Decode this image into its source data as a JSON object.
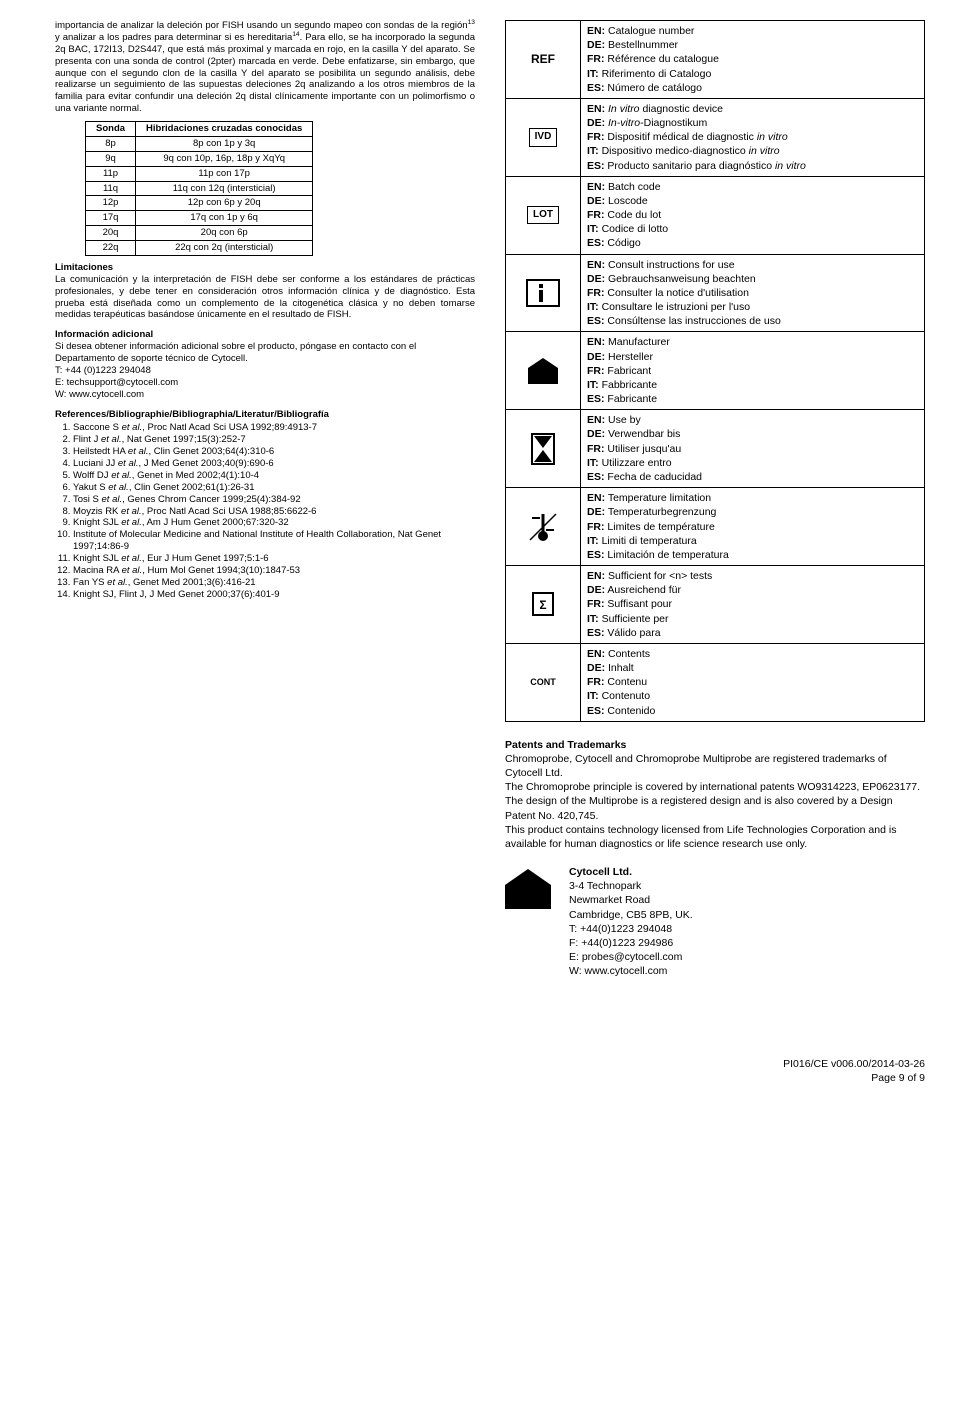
{
  "intro_paragraph_html": "importancia de analizar la deleción por FISH usando un segundo mapeo con sondas de la región<sup>13</sup> y analizar a los padres para determinar si es hereditaria<sup>14</sup>. Para ello, se ha incorporado la segunda 2q BAC, 172I13, D2S447, que está más proximal y marcada en rojo, en la casilla Y del aparato. Se presenta con una sonda de control (2pter) marcada en verde. Debe enfatizarse, sin embargo, que aunque con el segundo clon de la casilla Y del aparato se posibilita un segundo análisis, debe realizarse un seguimiento de las supuestas deleciones 2q analizando a los otros miembros de la familia para evitar confundir una deleción 2q distal clínicamente importante con un polimorfismo o una variante normal.",
  "sonda_table": {
    "headers": [
      "Sonda",
      "Hibridaciones cruzadas conocidas"
    ],
    "rows": [
      [
        "8p",
        "8p con 1p y 3q"
      ],
      [
        "9q",
        "9q con 10p, 16p, 18p y XqYq"
      ],
      [
        "11p",
        "11p con 17p"
      ],
      [
        "11q",
        "11q con 12q (intersticial)"
      ],
      [
        "12p",
        "12p con 6p y 20q"
      ],
      [
        "17q",
        "17q con 1p y 6q"
      ],
      [
        "20q",
        "20q con 6p"
      ],
      [
        "22q",
        "22q con 2q (intersticial)"
      ]
    ]
  },
  "limitaciones_title": "Limitaciones",
  "limitaciones_body": "La comunicación y la interpretación de FISH debe ser conforme a los estándares de prácticas profesionales, y debe tener en consideración otros información clínica y de diagnóstico. Esta prueba está diseñada como un complemento de la citogenética clásica y no deben tomarse medidas terapéuticas basándose únicamente en el resultado de FISH.",
  "info_title": "Información adicional",
  "info_body": "Si desea obtener información adicional sobre el producto, póngase en contacto con el Departamento de soporte técnico de Cytocell.",
  "info_tel": "T: +44 (0)1223 294048",
  "info_email": "E: techsupport@cytocell.com",
  "info_web": "W: www.cytocell.com",
  "refs_title": "References/Bibliographie/Bibliographia/Literatur/Bibliografía",
  "refs": [
    "Saccone S <i>et al.</i>, Proc Natl Acad Sci USA 1992;89:4913-7",
    "Flint J <i>et al.</i>, Nat Genet 1997;15(3):252-7",
    "Heilstedt HA <i>et al.</i>, Clin Genet 2003;64(4):310-6",
    "Luciani JJ <i>et al.</i>, J Med Genet 2003;40(9):690-6",
    "Wolff DJ <i>et al.</i>, Genet in Med 2002;4(1):10-4",
    "Yakut S <i>et al.</i>, Clin Genet 2002;61(1):26-31",
    "Tosi S <i>et al.</i>, Genes Chrom Cancer 1999;25(4):384-92",
    "Moyzis RK <i>et al.</i>, Proc Natl Acad Sci USA 1988;85:6622-6",
    "Knight SJL <i>et al.</i>, Am J Hum Genet 2000;67:320-32",
    "Institute of Molecular Medicine and National Institute of Health Collaboration, Nat Genet 1997;14:86-9",
    "Knight SJL <i>et al.</i>, Eur J Hum Genet 1997;5:1-6",
    "Macina RA <i>et al.</i>, Hum Mol Genet 1994;3(10):1847-53",
    "Fan YS <i>et al.</i>, Genet Med 2001;3(6):416-21",
    "Knight SJ, Flint J, J Med Genet 2000;37(6):401-9"
  ],
  "symbols": [
    {
      "code": "REF",
      "svg": "ref",
      "lines": {
        "EN": "Catalogue number",
        "DE": "Bestellnummer",
        "FR": "Référence du catalogue",
        "IT": "Riferimento di Catalogo",
        "ES": "Número de catálogo"
      }
    },
    {
      "code": "IVD",
      "svg": "ivd",
      "lines": {
        "EN": "<i>In vitro</i> diagnostic device",
        "DE": "<i>In-vitro</i>-Diagnostikum",
        "FR": "Dispositif médical de diagnostic <i>in vitro</i>",
        "IT": "Dispositivo medico-diagnostico <i>in vitro</i>",
        "ES": "Producto sanitario para diagnóstico <i>in vitro</i>"
      }
    },
    {
      "code": "LOT",
      "svg": "lot",
      "lines": {
        "EN": "Batch code",
        "DE": "Loscode",
        "FR": "Code du lot",
        "IT": "Codice di lotto",
        "ES": "Código"
      }
    },
    {
      "code": "IFU",
      "svg": "ifu",
      "lines": {
        "EN": "Consult instructions for use",
        "DE": "Gebrauchsanweisung beachten",
        "FR": "Consulter la notice d'utilisation",
        "IT": "Consultare le istruzioni per l'uso",
        "ES": "Consúltense las instrucciones de uso"
      }
    },
    {
      "code": "MFG",
      "svg": "mfg",
      "lines": {
        "EN": "Manufacturer",
        "DE": "Hersteller",
        "FR": "Fabricant",
        "IT": "Fabbricante",
        "ES": "Fabricante"
      }
    },
    {
      "code": "EXP",
      "svg": "exp",
      "lines": {
        "EN": "Use by",
        "DE": "Verwendbar bis",
        "FR": "Utiliser jusqu'au",
        "IT": "Utilizzare entro",
        "ES": "Fecha de caducidad"
      }
    },
    {
      "code": "TEMP",
      "svg": "temp",
      "lines": {
        "EN": "Temperature limitation",
        "DE": "Temperaturbegrenzung",
        "FR": "Limites de température",
        "IT": "Limiti di temperatura",
        "ES": "Limitación de temperatura"
      }
    },
    {
      "code": "SUF",
      "svg": "suf",
      "lines": {
        "EN": "Sufficient for &lt;n&gt; tests",
        "DE": "Ausreichend für",
        "FR": "Suffisant pour",
        "IT": "Sufficiente per",
        "ES": "Válido para"
      }
    },
    {
      "code": "CONT",
      "svg": "cont",
      "lines": {
        "EN": "Contents",
        "DE": "Inhalt",
        "FR": "Contenu",
        "IT": "Contenuto",
        "ES": "Contenido"
      }
    }
  ],
  "patents_title": "Patents and Trademarks",
  "patents_body": [
    "Chromoprobe, Cytocell and Chromoprobe Multiprobe are registered trademarks of Cytocell Ltd.",
    "The Chromoprobe principle is covered by international patents WO9314223, EP0623177. The design of the Multiprobe is a registered design and is also covered by a Design Patent No. 420,745.",
    "This product contains technology licensed from Life Technologies Corporation and is available for human diagnostics or life science research use only."
  ],
  "company": {
    "name": "Cytocell Ltd.",
    "addr1": "3-4 Technopark",
    "addr2": "Newmarket Road",
    "addr3": "Cambridge, CB5 8PB, UK.",
    "tel": "T: +44(0)1223 294048",
    "fax": "F: +44(0)1223 294986",
    "email": "E: probes@cytocell.com",
    "web": "W: www.cytocell.com"
  },
  "footer_line1": "PI016/CE v006.00/2014-03-26",
  "footer_line2": "Page 9 of 9"
}
